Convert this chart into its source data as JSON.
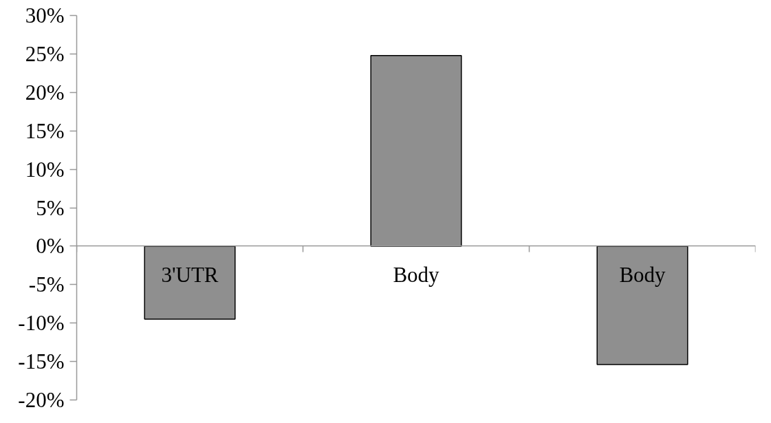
{
  "chart_data": {
    "type": "bar",
    "categories": [
      "3'UTR",
      "Body",
      "Body"
    ],
    "values": [
      -9.5,
      24.8,
      -15.4
    ],
    "color": "#8f8f8f",
    "ylim": [
      -20,
      30
    ],
    "yticks": [
      {
        "value": -20,
        "label": "-20%"
      },
      {
        "value": -15,
        "label": "-15%"
      },
      {
        "value": -10,
        "label": "-10%"
      },
      {
        "value": -5,
        "label": "-5%"
      },
      {
        "value": 0,
        "label": "0%"
      },
      {
        "value": 5,
        "label": "5%"
      },
      {
        "value": 10,
        "label": "10%"
      },
      {
        "value": 15,
        "label": "15%"
      },
      {
        "value": 20,
        "label": "20%"
      },
      {
        "value": 25,
        "label": "25%"
      },
      {
        "value": 30,
        "label": "30%"
      }
    ]
  }
}
